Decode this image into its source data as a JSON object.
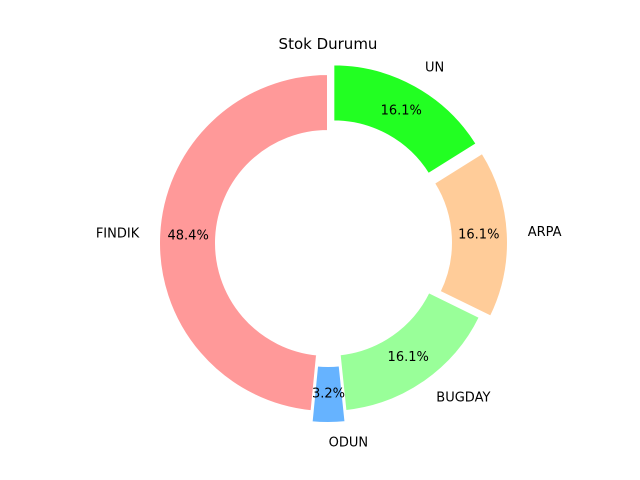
{
  "chart_data": {
    "type": "pie",
    "style": "donut",
    "title": "Stok Durumu",
    "categories": [
      "UN",
      "ARPA",
      "BUGDAY",
      "ODUN",
      "FINDIK"
    ],
    "values": [
      16.1,
      16.1,
      16.1,
      3.2,
      48.4
    ],
    "value_labels": [
      "16.1%",
      "16.1%",
      "16.1%",
      "3.2%",
      "48.4%"
    ],
    "colors": [
      "#22ff22",
      "#ffcc99",
      "#99ff99",
      "#66b3ff",
      "#ff9999"
    ],
    "start_angle_deg": 90,
    "direction": "clockwise",
    "exploded": [
      true,
      true,
      false,
      true,
      false
    ],
    "legend": "none",
    "grid": false
  }
}
